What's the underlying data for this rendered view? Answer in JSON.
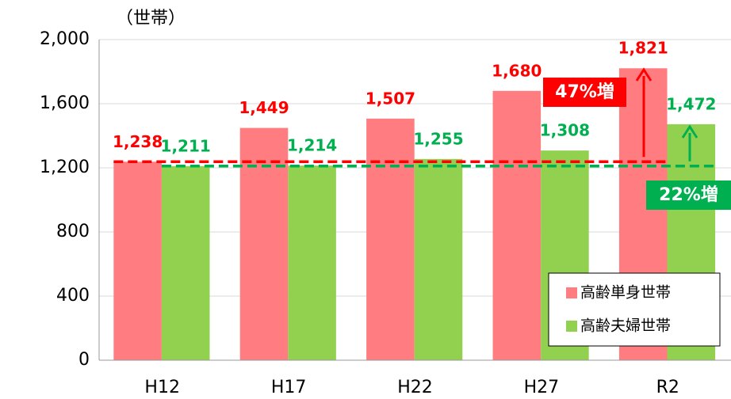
{
  "chart_data": {
    "type": "bar",
    "y_axis_label": "（世帯）",
    "categories": [
      "H12",
      "H17",
      "H22",
      "H27",
      "R2"
    ],
    "series": [
      {
        "name": "高齢単身世帯",
        "color": "#ff7c80",
        "label_color": "#ff0000",
        "values": [
          1238,
          1449,
          1507,
          1680,
          1821
        ],
        "value_labels": [
          "1,238",
          "1,449",
          "1,507",
          "1,680",
          "1,821"
        ]
      },
      {
        "name": "高齢夫婦世帯",
        "color": "#92d050",
        "label_color": "#00b050",
        "values": [
          1211,
          1214,
          1255,
          1308,
          1472
        ],
        "value_labels": [
          "1,211",
          "1,214",
          "1,255",
          "1,308",
          "1,472"
        ]
      }
    ],
    "annotations": [
      "47%増",
      "22%増"
    ],
    "ylim": [
      0,
      2000
    ],
    "yticks": [
      0,
      400,
      800,
      {
        "value": 1200,
        "label": "1,200"
      },
      {
        "value": 1600,
        "label": "1,600"
      },
      {
        "value": 2000,
        "label": "2,000"
      }
    ],
    "grid": true,
    "legend": "lower right"
  }
}
